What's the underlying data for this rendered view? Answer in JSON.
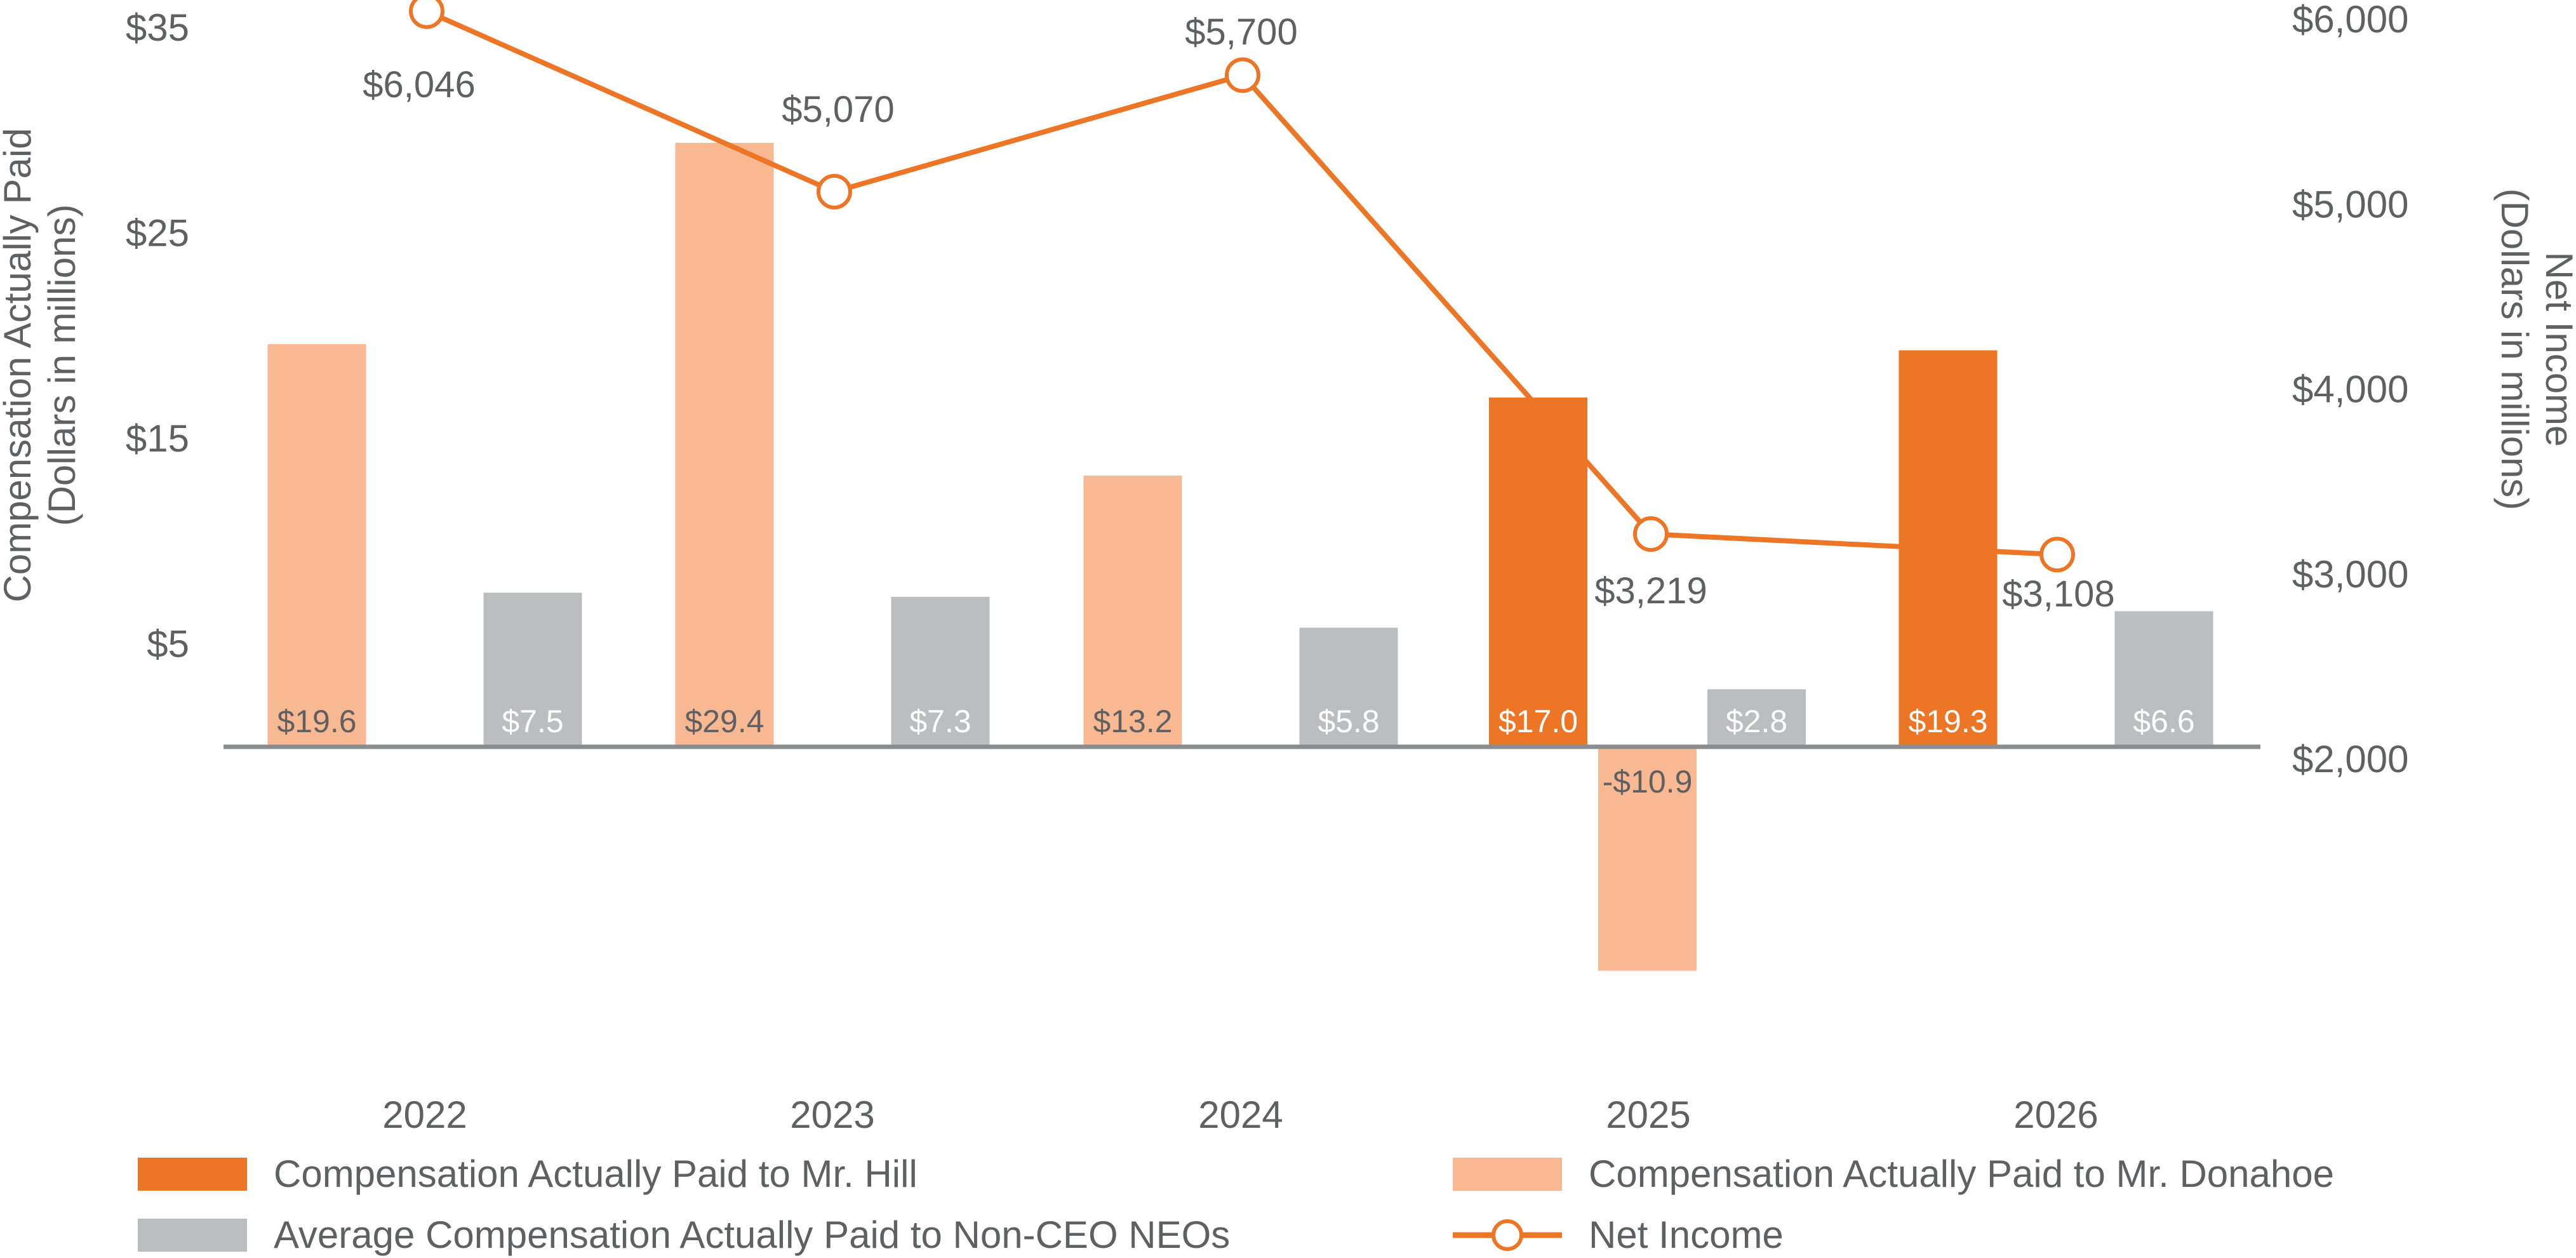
{
  "chart_data": {
    "type": "bar",
    "categories": [
      "2022",
      "2023",
      "2024",
      "2025",
      "2026"
    ],
    "series": [
      {
        "name": "Compensation Actually Paid to Mr. Hill",
        "kind": "bar",
        "axis": "left",
        "color": "#EC7626",
        "values": [
          null,
          null,
          null,
          17.0,
          19.3
        ],
        "labels": [
          "",
          "",
          "",
          "$17.0",
          "$19.3"
        ]
      },
      {
        "name": "Compensation Actually Paid to Mr. Donahoe",
        "kind": "bar",
        "axis": "left",
        "color": "#F8B891",
        "values": [
          19.6,
          29.4,
          13.2,
          -10.9,
          null
        ],
        "labels": [
          "$19.6",
          "$29.4",
          "$13.2",
          "-$10.9",
          ""
        ]
      },
      {
        "name": "Average Compensation Actually Paid to Non-CEO NEOs",
        "kind": "bar",
        "axis": "left",
        "color": "#BCBDBF",
        "values": [
          7.5,
          7.3,
          5.8,
          2.8,
          6.6
        ],
        "labels": [
          "$7.5",
          "$7.3",
          "$5.8",
          "$2.8",
          "$6.6"
        ]
      },
      {
        "name": "Net Income",
        "kind": "line",
        "axis": "right",
        "color": "#EC7626",
        "values": [
          6046,
          5070,
          5700,
          3219,
          3108
        ],
        "labels": [
          "$6,046",
          "$5,070",
          "$5,700",
          "$3,219",
          "$3,108"
        ]
      }
    ],
    "ylabel": "Compensation Actually Paid (Dollars in millions)",
    "ylabel_lines": [
      "Compensation Actually Paid",
      "(Dollars in millions)"
    ],
    "y2label": "Net Income (Dollars in millions)",
    "y2label_lines": [
      "Net Income",
      "(Dollars in millions)"
    ],
    "y_ticks": [
      "$35",
      "$25",
      "$15",
      "$5"
    ],
    "y_tick_values": [
      35,
      25,
      15,
      5
    ],
    "y2_ticks": [
      "$6,000",
      "$5,000",
      "$4,000",
      "$3,000",
      "$2,000"
    ],
    "y2_tick_values": [
      6000,
      5000,
      4000,
      3000,
      2000
    ],
    "ylim": [
      -15,
      36
    ],
    "y2lim": [
      2000,
      6000
    ],
    "grid": false,
    "legend_position": "bottom"
  },
  "legend": [
    {
      "label": "Compensation Actually Paid to Mr. Hill",
      "type": "bar",
      "color": "#EC7626"
    },
    {
      "label": "Compensation Actually Paid to Mr. Donahoe",
      "type": "bar",
      "color": "#F8B891"
    },
    {
      "label": "Average Compensation Actually Paid to Non-CEO NEOs",
      "type": "bar",
      "color": "#BCBDBF"
    },
    {
      "label": "Net Income",
      "type": "line",
      "color": "#EC7626"
    }
  ]
}
